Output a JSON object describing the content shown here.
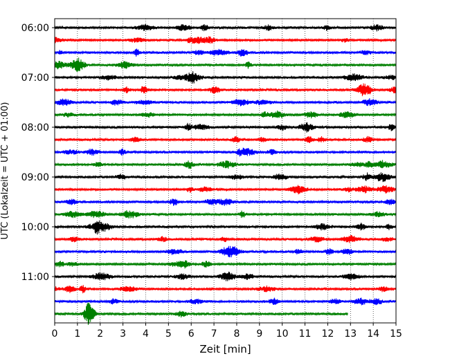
{
  "chart_data": {
    "type": "line",
    "title": "",
    "xlabel": "Zeit  [min]",
    "ylabel": "UTC (Lokalzeit = UTC + 01:00)",
    "xlim": [
      0,
      15
    ],
    "x_ticks": [
      0,
      1,
      2,
      3,
      4,
      5,
      6,
      7,
      8,
      9,
      10,
      11,
      12,
      13,
      14,
      15
    ],
    "x_tick_labels": [
      "0",
      "1",
      "2",
      "3",
      "4",
      "5",
      "6",
      "7",
      "8",
      "9",
      "10",
      "11",
      "12",
      "13",
      "14",
      "15"
    ],
    "y_tick_labels": [
      "06:00",
      "07:00",
      "08:00",
      "09:00",
      "10:00",
      "11:00"
    ],
    "trace_minutes_per_row": 15,
    "row_start_times": [
      "06:00",
      "06:15",
      "06:30",
      "06:45",
      "07:00",
      "07:15",
      "07:30",
      "07:45",
      "08:00",
      "08:15",
      "08:30",
      "08:45",
      "09:00",
      "09:15",
      "09:30",
      "09:45",
      "10:00",
      "10:15",
      "10:30",
      "10:45",
      "11:00",
      "11:15",
      "11:30",
      "11:45"
    ],
    "row_end_minutes": [
      15,
      15,
      15,
      15,
      15,
      15,
      15,
      15,
      15,
      15,
      15,
      15,
      15,
      15,
      15,
      15,
      15,
      15,
      15,
      15,
      15,
      15,
      15,
      12.9
    ],
    "trace_colors": [
      "#000000",
      "#ff0000",
      "#0000ff",
      "#008000"
    ],
    "grid": "vertical dotted lines at each minute",
    "legend": "none"
  }
}
